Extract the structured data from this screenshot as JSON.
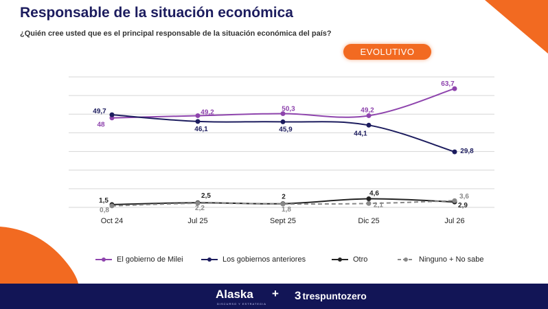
{
  "header": {
    "title": "Responsable de la situación económica",
    "subtitle": "¿Quién cree usted que es el principal responsable de la situación económica del país?",
    "badge": "EVOLUTIVO"
  },
  "colors": {
    "accent": "#f26a21",
    "navy": "#121556",
    "title": "#1c1c5e"
  },
  "chart_data": {
    "type": "line",
    "categories": [
      "Oct 24",
      "Jul 25",
      "Sept 25",
      "Dic 25",
      "Jul 26"
    ],
    "series": [
      {
        "name": "El gobierno de Milei",
        "values": [
          48,
          49.2,
          50.3,
          49.2,
          63.7
        ],
        "labels": [
          "48",
          "49,2",
          "50,3",
          "49,2",
          "63,7"
        ],
        "color": "#8e44ad",
        "dashed": false
      },
      {
        "name": "Los gobiernos anteriores",
        "values": [
          49.7,
          46.1,
          45.9,
          44.1,
          29.8
        ],
        "labels": [
          "49,7",
          "46,1",
          "45,9",
          "44,1",
          "29,8"
        ],
        "color": "#1c1c5e",
        "dashed": false
      },
      {
        "name": "Otro",
        "values": [
          1.5,
          2.5,
          2,
          4.6,
          2.9
        ],
        "labels": [
          "1,5",
          "2,5",
          "2",
          "4,6",
          "2,9"
        ],
        "color": "#222222",
        "dashed": false
      },
      {
        "name": "Ninguno + No sabe",
        "values": [
          0.8,
          2.2,
          1.8,
          2.1,
          3.6
        ],
        "labels": [
          "0,8",
          "2,2",
          "1,8",
          "2,1",
          "3,6"
        ],
        "color": "#888888",
        "dashed": true
      }
    ],
    "ylim": [
      0,
      70
    ],
    "grid": true,
    "legend_position": "bottom"
  },
  "footer": {
    "brand1": "Alaska",
    "brand1_tagline": "DISCURSO Y ESTRATEGIA",
    "plus": "+",
    "brand2_mark": "3",
    "brand2": "trespuntozero"
  }
}
